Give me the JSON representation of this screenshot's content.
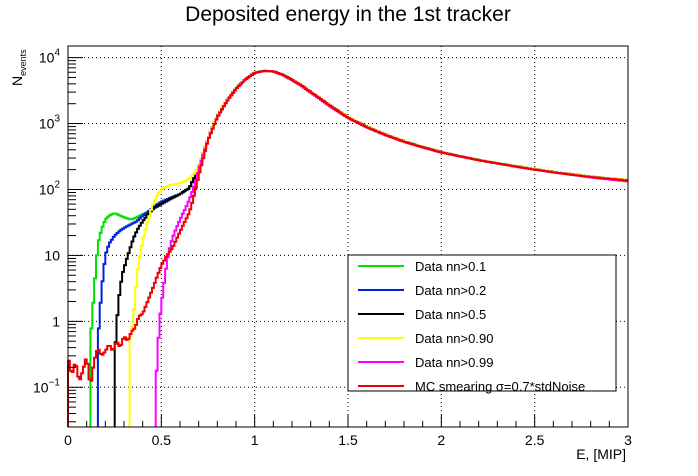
{
  "chart_data": {
    "type": "line",
    "title": "Deposited energy in the 1st tracker",
    "xlabel": "E, [MIP]",
    "ylabel": "N",
    "ylabel_sub": "events",
    "x_range": [
      0,
      3
    ],
    "y_range": [
      0.025,
      15000
    ],
    "y_scale": "log",
    "grid": true,
    "legend_position": "bottom-right",
    "x_ticks": [
      {
        "value": 0,
        "label": "0"
      },
      {
        "value": 0.5,
        "label": "0.5"
      },
      {
        "value": 1,
        "label": "1"
      },
      {
        "value": 1.5,
        "label": "1.5"
      },
      {
        "value": 2,
        "label": "2"
      },
      {
        "value": 2.5,
        "label": "2.5"
      },
      {
        "value": 3,
        "label": "3"
      }
    ],
    "y_ticks": [
      {
        "value": 0.1,
        "base": "10",
        "exp": "−1"
      },
      {
        "value": 1,
        "base": "1",
        "exp": ""
      },
      {
        "value": 10,
        "base": "10",
        "exp": ""
      },
      {
        "value": 100,
        "base": "10",
        "exp": "2"
      },
      {
        "value": 1000,
        "base": "10",
        "exp": "3"
      },
      {
        "value": 10000,
        "base": "10",
        "exp": "4"
      }
    ],
    "series": [
      {
        "name": "Data nn>0.1",
        "color": "#00e000",
        "points": [
          [
            0.12,
            0.5
          ],
          [
            0.14,
            3
          ],
          [
            0.16,
            15
          ],
          [
            0.18,
            25
          ],
          [
            0.2,
            35
          ],
          [
            0.22,
            40
          ],
          [
            0.25,
            44
          ],
          [
            0.28,
            40
          ],
          [
            0.31,
            37
          ],
          [
            0.34,
            35
          ],
          [
            0.37,
            38
          ],
          [
            0.4,
            42
          ],
          [
            0.43,
            46
          ],
          [
            0.46,
            55
          ],
          [
            0.5,
            65
          ],
          [
            0.55,
            75
          ],
          [
            0.6,
            85
          ],
          [
            0.65,
            105
          ],
          [
            0.7,
            210
          ],
          [
            0.75,
            600
          ],
          [
            0.8,
            1300
          ],
          [
            0.85,
            2200
          ],
          [
            0.9,
            3400
          ],
          [
            0.95,
            4700
          ],
          [
            1.0,
            5900
          ],
          [
            1.05,
            6300
          ],
          [
            1.1,
            6200
          ],
          [
            1.15,
            5500
          ],
          [
            1.2,
            4600
          ],
          [
            1.25,
            3800
          ],
          [
            1.3,
            3000
          ],
          [
            1.35,
            2400
          ],
          [
            1.4,
            1900
          ],
          [
            1.45,
            1550
          ],
          [
            1.5,
            1250
          ],
          [
            1.6,
            900
          ],
          [
            1.7,
            680
          ],
          [
            1.8,
            540
          ],
          [
            1.9,
            440
          ],
          [
            2.0,
            370
          ],
          [
            2.1,
            320
          ],
          [
            2.2,
            280
          ],
          [
            2.3,
            250
          ],
          [
            2.4,
            225
          ],
          [
            2.5,
            205
          ],
          [
            2.6,
            185
          ],
          [
            2.7,
            170
          ],
          [
            2.8,
            157
          ],
          [
            2.9,
            147
          ],
          [
            3.0,
            140
          ]
        ]
      },
      {
        "name": "Data nn>0.2",
        "color": "#0022dd",
        "points": [
          [
            0.16,
            0.5
          ],
          [
            0.18,
            3
          ],
          [
            0.2,
            10
          ],
          [
            0.22,
            15
          ],
          [
            0.25,
            20
          ],
          [
            0.28,
            24
          ],
          [
            0.31,
            27
          ],
          [
            0.34,
            30
          ],
          [
            0.37,
            33
          ],
          [
            0.4,
            40
          ],
          [
            0.43,
            46
          ],
          [
            0.46,
            55
          ],
          [
            0.5,
            65
          ],
          [
            0.55,
            75
          ],
          [
            0.6,
            85
          ],
          [
            0.65,
            105
          ],
          [
            0.7,
            210
          ],
          [
            0.75,
            600
          ],
          [
            0.8,
            1300
          ],
          [
            0.85,
            2200
          ],
          [
            0.9,
            3400
          ],
          [
            0.95,
            4700
          ],
          [
            1.0,
            5900
          ],
          [
            1.05,
            6300
          ],
          [
            1.1,
            6200
          ],
          [
            1.15,
            5500
          ],
          [
            1.2,
            4600
          ],
          [
            1.25,
            3800
          ],
          [
            1.3,
            3000
          ],
          [
            1.35,
            2400
          ],
          [
            1.4,
            1900
          ],
          [
            1.45,
            1550
          ],
          [
            1.5,
            1250
          ],
          [
            1.6,
            900
          ],
          [
            1.7,
            680
          ],
          [
            1.8,
            540
          ],
          [
            1.9,
            440
          ],
          [
            2.0,
            370
          ],
          [
            2.1,
            320
          ],
          [
            2.2,
            280
          ],
          [
            2.3,
            250
          ],
          [
            2.4,
            225
          ],
          [
            2.5,
            205
          ],
          [
            2.6,
            185
          ],
          [
            2.7,
            170
          ],
          [
            2.8,
            157
          ],
          [
            2.9,
            147
          ],
          [
            3.0,
            140
          ]
        ]
      },
      {
        "name": "Data nn>0.5",
        "color": "#000000",
        "points": [
          [
            0.25,
            0.3
          ],
          [
            0.27,
            2
          ],
          [
            0.29,
            5
          ],
          [
            0.31,
            8
          ],
          [
            0.33,
            12
          ],
          [
            0.35,
            18
          ],
          [
            0.37,
            24
          ],
          [
            0.4,
            33
          ],
          [
            0.43,
            42
          ],
          [
            0.46,
            52
          ],
          [
            0.5,
            60
          ],
          [
            0.55,
            72
          ],
          [
            0.6,
            85
          ],
          [
            0.65,
            105
          ],
          [
            0.7,
            210
          ],
          [
            0.75,
            600
          ],
          [
            0.8,
            1300
          ],
          [
            0.85,
            2200
          ],
          [
            0.9,
            3400
          ],
          [
            0.95,
            4700
          ],
          [
            1.0,
            5900
          ],
          [
            1.05,
            6300
          ],
          [
            1.1,
            6200
          ],
          [
            1.15,
            5500
          ],
          [
            1.2,
            4600
          ],
          [
            1.25,
            3800
          ],
          [
            1.3,
            3000
          ],
          [
            1.35,
            2400
          ],
          [
            1.4,
            1900
          ],
          [
            1.45,
            1550
          ],
          [
            1.5,
            1250
          ],
          [
            1.6,
            900
          ],
          [
            1.7,
            680
          ],
          [
            1.8,
            540
          ],
          [
            1.9,
            440
          ],
          [
            2.0,
            370
          ],
          [
            2.1,
            320
          ],
          [
            2.2,
            280
          ],
          [
            2.3,
            250
          ],
          [
            2.4,
            225
          ],
          [
            2.5,
            205
          ],
          [
            2.6,
            185
          ],
          [
            2.7,
            170
          ],
          [
            2.8,
            157
          ],
          [
            2.9,
            147
          ],
          [
            3.0,
            140
          ]
        ]
      },
      {
        "name": "Data nn>0.90",
        "color": "#ffff00",
        "points": [
          [
            0.33,
            0.5
          ],
          [
            0.35,
            1
          ],
          [
            0.37,
            5
          ],
          [
            0.39,
            12
          ],
          [
            0.41,
            22
          ],
          [
            0.43,
            35
          ],
          [
            0.45,
            55
          ],
          [
            0.48,
            85
          ],
          [
            0.51,
            105
          ],
          [
            0.54,
            115
          ],
          [
            0.57,
            120
          ],
          [
            0.6,
            125
          ],
          [
            0.63,
            135
          ],
          [
            0.66,
            155
          ],
          [
            0.7,
            210
          ],
          [
            0.75,
            600
          ],
          [
            0.8,
            1300
          ],
          [
            0.85,
            2200
          ],
          [
            0.9,
            3400
          ],
          [
            0.95,
            4700
          ],
          [
            1.0,
            5900
          ],
          [
            1.05,
            6300
          ],
          [
            1.1,
            6200
          ],
          [
            1.15,
            5500
          ],
          [
            1.2,
            4600
          ],
          [
            1.25,
            3800
          ],
          [
            1.3,
            3000
          ],
          [
            1.35,
            2400
          ],
          [
            1.4,
            1900
          ],
          [
            1.45,
            1550
          ],
          [
            1.5,
            1250
          ],
          [
            1.6,
            900
          ],
          [
            1.7,
            680
          ],
          [
            1.8,
            540
          ],
          [
            1.9,
            440
          ],
          [
            2.0,
            370
          ],
          [
            2.1,
            320
          ],
          [
            2.2,
            280
          ],
          [
            2.3,
            250
          ],
          [
            2.4,
            225
          ],
          [
            2.5,
            205
          ],
          [
            2.6,
            185
          ],
          [
            2.7,
            170
          ],
          [
            2.8,
            157
          ],
          [
            2.9,
            147
          ],
          [
            3.0,
            140
          ]
        ]
      },
      {
        "name": "Data nn>0.99",
        "color": "#ff00ff",
        "points": [
          [
            0.47,
            0.1
          ],
          [
            0.49,
            1
          ],
          [
            0.51,
            3
          ],
          [
            0.53,
            8
          ],
          [
            0.55,
            15
          ],
          [
            0.57,
            22
          ],
          [
            0.59,
            30
          ],
          [
            0.61,
            40
          ],
          [
            0.63,
            52
          ],
          [
            0.65,
            70
          ],
          [
            0.68,
            120
          ],
          [
            0.7,
            200
          ],
          [
            0.75,
            560
          ],
          [
            0.8,
            1250
          ],
          [
            0.85,
            2150
          ],
          [
            0.9,
            3350
          ],
          [
            0.95,
            4650
          ],
          [
            1.0,
            5850
          ],
          [
            1.05,
            6250
          ],
          [
            1.1,
            6150
          ],
          [
            1.15,
            5450
          ],
          [
            1.2,
            4550
          ],
          [
            1.25,
            3750
          ],
          [
            1.3,
            2950
          ],
          [
            1.35,
            2350
          ],
          [
            1.4,
            1850
          ],
          [
            1.45,
            1500
          ],
          [
            1.5,
            1220
          ],
          [
            1.6,
            880
          ],
          [
            1.7,
            670
          ],
          [
            1.8,
            530
          ],
          [
            1.9,
            435
          ],
          [
            2.0,
            365
          ],
          [
            2.1,
            318
          ],
          [
            2.2,
            278
          ],
          [
            2.3,
            248
          ],
          [
            2.4,
            222
          ],
          [
            2.5,
            200
          ],
          [
            2.6,
            182
          ],
          [
            2.7,
            167
          ],
          [
            2.8,
            152
          ],
          [
            2.9,
            142
          ],
          [
            3.0,
            132
          ]
        ]
      },
      {
        "name": "MC smearing σ=0.7*stdNoise",
        "color": "#ee0000",
        "points": [
          [
            0.0,
            0.3
          ],
          [
            0.02,
            0.15
          ],
          [
            0.04,
            0.25
          ],
          [
            0.06,
            0.12
          ],
          [
            0.08,
            0.18
          ],
          [
            0.1,
            0.3
          ],
          [
            0.12,
            0.1
          ],
          [
            0.14,
            0.25
          ],
          [
            0.16,
            0.4
          ],
          [
            0.18,
            0.3
          ],
          [
            0.2,
            0.35
          ],
          [
            0.22,
            0.45
          ],
          [
            0.24,
            0.35
          ],
          [
            0.26,
            0.5
          ],
          [
            0.28,
            0.4
          ],
          [
            0.3,
            0.6
          ],
          [
            0.32,
            0.5
          ],
          [
            0.34,
            0.7
          ],
          [
            0.36,
            0.8
          ],
          [
            0.38,
            1.2
          ],
          [
            0.4,
            1.3
          ],
          [
            0.42,
            1.8
          ],
          [
            0.44,
            2.5
          ],
          [
            0.46,
            3.5
          ],
          [
            0.48,
            5
          ],
          [
            0.5,
            7
          ],
          [
            0.53,
            10
          ],
          [
            0.56,
            13
          ],
          [
            0.59,
            20
          ],
          [
            0.62,
            30
          ],
          [
            0.65,
            45
          ],
          [
            0.67,
            70
          ],
          [
            0.7,
            160
          ],
          [
            0.75,
            560
          ],
          [
            0.8,
            1250
          ],
          [
            0.85,
            2150
          ],
          [
            0.9,
            3350
          ],
          [
            0.95,
            4650
          ],
          [
            1.0,
            5850
          ],
          [
            1.05,
            6300
          ],
          [
            1.1,
            6200
          ],
          [
            1.15,
            5500
          ],
          [
            1.2,
            4600
          ],
          [
            1.25,
            3800
          ],
          [
            1.3,
            3000
          ],
          [
            1.35,
            2400
          ],
          [
            1.4,
            1900
          ],
          [
            1.45,
            1520
          ],
          [
            1.5,
            1220
          ],
          [
            1.6,
            880
          ],
          [
            1.7,
            670
          ],
          [
            1.8,
            530
          ],
          [
            1.9,
            435
          ],
          [
            2.0,
            365
          ],
          [
            2.1,
            318
          ],
          [
            2.2,
            278
          ],
          [
            2.3,
            248
          ],
          [
            2.4,
            222
          ],
          [
            2.5,
            200
          ],
          [
            2.6,
            182
          ],
          [
            2.7,
            167
          ],
          [
            2.8,
            155
          ],
          [
            2.9,
            145
          ],
          [
            3.0,
            137
          ]
        ]
      }
    ]
  }
}
